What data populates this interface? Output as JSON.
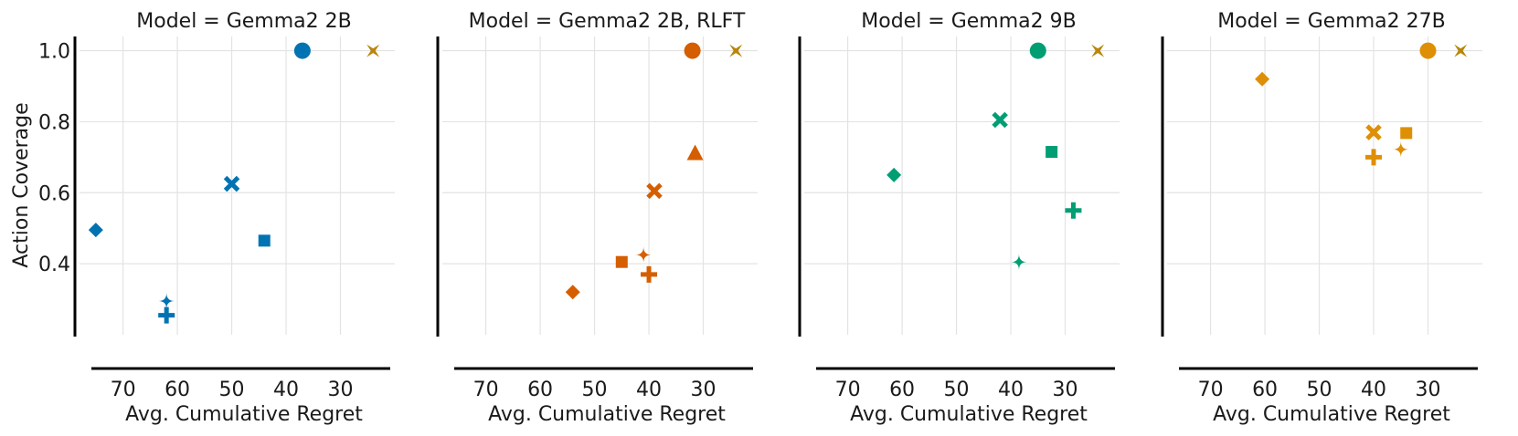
{
  "chart_data": {
    "type": "scatter",
    "facet_label": "Model",
    "xlabel": "Avg. Cumulative Regret",
    "ylabel": "Action Coverage",
    "x_reversed": true,
    "xlim": [
      78,
      20
    ],
    "ylim": [
      0.2,
      1.04
    ],
    "xticks": [
      70,
      60,
      50,
      40,
      30
    ],
    "yticks": [
      0.4,
      0.6,
      0.8,
      1.0
    ],
    "ytick_labels": [
      "0.4",
      "0.6",
      "0.8",
      "1.0"
    ],
    "grid": true,
    "panels": [
      {
        "title": "Model = Gemma2 2B",
        "color": "#0173b2",
        "points": [
          {
            "marker": "circle",
            "x": 37,
            "y": 1.0
          },
          {
            "marker": "star4",
            "x": 24,
            "y": 1.0,
            "color": "#b8860b"
          },
          {
            "marker": "x",
            "x": 50,
            "y": 0.625
          },
          {
            "marker": "diamond",
            "x": 75,
            "y": 0.495
          },
          {
            "marker": "square",
            "x": 44,
            "y": 0.465
          },
          {
            "marker": "sparkle",
            "x": 62,
            "y": 0.295
          },
          {
            "marker": "plus",
            "x": 62,
            "y": 0.255
          }
        ]
      },
      {
        "title": "Model = Gemma2 2B, RLFT",
        "color": "#d55e00",
        "points": [
          {
            "marker": "circle",
            "x": 32,
            "y": 1.0
          },
          {
            "marker": "star4",
            "x": 24,
            "y": 1.0,
            "color": "#b8860b"
          },
          {
            "marker": "triangle",
            "x": 31.5,
            "y": 0.71
          },
          {
            "marker": "x",
            "x": 39,
            "y": 0.605
          },
          {
            "marker": "sparkle",
            "x": 41,
            "y": 0.425
          },
          {
            "marker": "square",
            "x": 45,
            "y": 0.405
          },
          {
            "marker": "plus",
            "x": 40,
            "y": 0.37
          },
          {
            "marker": "diamond",
            "x": 54,
            "y": 0.32
          }
        ]
      },
      {
        "title": "Model = Gemma2 9B",
        "color": "#029e73",
        "points": [
          {
            "marker": "circle",
            "x": 35,
            "y": 1.0
          },
          {
            "marker": "star4",
            "x": 24,
            "y": 1.0,
            "color": "#b8860b"
          },
          {
            "marker": "x",
            "x": 42,
            "y": 0.805
          },
          {
            "marker": "square",
            "x": 32.5,
            "y": 0.715
          },
          {
            "marker": "diamond",
            "x": 61.5,
            "y": 0.65
          },
          {
            "marker": "plus",
            "x": 28.5,
            "y": 0.55
          },
          {
            "marker": "sparkle",
            "x": 38.5,
            "y": 0.405
          }
        ]
      },
      {
        "title": "Model = Gemma2 27B",
        "color": "#de8f05",
        "points": [
          {
            "marker": "circle",
            "x": 30,
            "y": 1.0
          },
          {
            "marker": "star4",
            "x": 24,
            "y": 1.0,
            "color": "#b8860b"
          },
          {
            "marker": "diamond",
            "x": 60.5,
            "y": 0.92
          },
          {
            "marker": "x",
            "x": 40,
            "y": 0.77
          },
          {
            "marker": "square",
            "x": 34,
            "y": 0.768
          },
          {
            "marker": "sparkle",
            "x": 35,
            "y": 0.722
          },
          {
            "marker": "plus",
            "x": 40,
            "y": 0.7
          }
        ]
      }
    ]
  }
}
